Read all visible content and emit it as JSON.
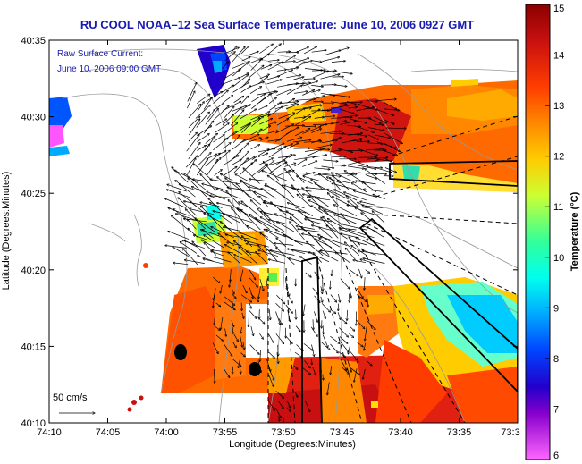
{
  "title": "RU COOL  NOAA–12  Sea Surface Temperature:  June 10, 2006 0927 GMT",
  "overlay": {
    "line1": "Raw Surface Current:",
    "line2": "June 10, 2006 09:00 GMT"
  },
  "scale_label": "50 cm/s",
  "axes": {
    "xlabel": "Longitude (Degrees:Minutes)",
    "ylabel": "Latitude (Degrees:Minutes)",
    "x_ticks": [
      "74:10",
      "74:05",
      "74:00",
      "73:55",
      "73:50",
      "73:45",
      "73:40",
      "73:35",
      "73:3"
    ],
    "y_ticks": [
      "40:35",
      "40:30",
      "40:25",
      "40:20",
      "40:15",
      "40:10"
    ]
  },
  "colorbar": {
    "title": "Temperature (°C)",
    "ticks": [
      "15",
      "14",
      "13",
      "12",
      "11",
      "10",
      "9",
      "8",
      "7",
      "6"
    ],
    "range": [
      6,
      15
    ]
  },
  "colors": {
    "title": "#1a1ab0",
    "overlay_text": "#1a1ab0"
  }
}
